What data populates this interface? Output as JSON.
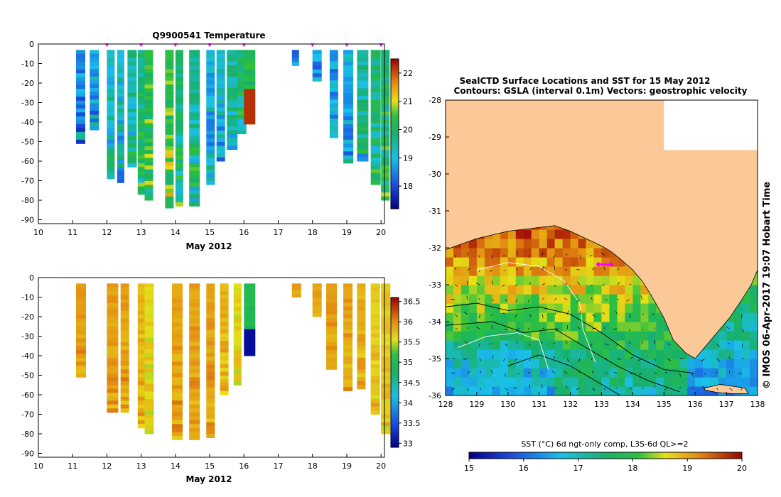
{
  "charts": {
    "temperature": {
      "title": "Q9900541  Temperature",
      "xlabel": "May 2012",
      "x_ticks": [
        "10",
        "11",
        "12",
        "13",
        "14",
        "15",
        "16",
        "17",
        "18",
        "19",
        "20"
      ],
      "y_ticks": [
        "0",
        "-10",
        "-20",
        "-30",
        "-40",
        "-50",
        "-60",
        "-70",
        "-80",
        "-90"
      ],
      "colorbar_ticks": [
        "22",
        "21",
        "20",
        "19",
        "18"
      ],
      "colors": {
        "cold": "#1d4fd8",
        "cool": "#1bbfe6",
        "mid": "#20c0b8",
        "green": "#1aab55",
        "yellow": "#e6e01a",
        "orange": "#e08a10",
        "red": "#b01010"
      }
    },
    "salinity": {
      "xlabel": "May 2012",
      "x_ticks": [
        "10",
        "11",
        "12",
        "13",
        "14",
        "15",
        "16",
        "17",
        "18",
        "19",
        "20"
      ],
      "y_ticks": [
        "0",
        "-10",
        "-20",
        "-30",
        "-40",
        "-50",
        "-60",
        "-70",
        "-80",
        "-90"
      ],
      "colorbar_ticks": [
        "36.5",
        "36",
        "35.5",
        "35",
        "34.5",
        "34",
        "33.5",
        "33"
      ],
      "colors": {
        "base": "#de7a0f",
        "dark": "#c8500c",
        "light": "#e69a20"
      }
    },
    "map": {
      "title_line1": "SealCTD Surface Locations and SST for 15 May 2012",
      "title_line2": "Contours: GSLA (interval 0.1m) Vectors: geostrophic velocity",
      "x_ticks": [
        "128",
        "129",
        "130",
        "131",
        "132",
        "133",
        "134",
        "135",
        "136",
        "137",
        "138"
      ],
      "y_ticks": [
        "-28",
        "-29",
        "-30",
        "-31",
        "-32",
        "-33",
        "-34",
        "-35",
        "-36"
      ],
      "side_stamp": "© IMOS 06-Apr-2017 19:07 Hobart Time",
      "colorbar_label": "SST (°C) 6d ngt-only comp, L3S-6d QL>=2",
      "colorbar_ticks": [
        "15",
        "16",
        "17",
        "18",
        "19",
        "20"
      ],
      "land_color": "#fbc898"
    }
  },
  "chart_data": [
    {
      "type": "heatmap",
      "title": "Q9900541  Temperature",
      "xlabel": "May 2012",
      "ylabel": "",
      "xlim": [
        10,
        20.1
      ],
      "ylim": [
        -92,
        0
      ],
      "colorbar_range": [
        17.2,
        22.5
      ],
      "profiles": [
        {
          "day": 11.1,
          "depth": -51,
          "value": 18.6
        },
        {
          "day": 11.5,
          "depth": -44,
          "value": 18.8
        },
        {
          "day": 12.0,
          "depth": -69,
          "value": 19.2
        },
        {
          "day": 12.3,
          "depth": -71,
          "value": 19.2
        },
        {
          "day": 12.6,
          "depth": -63,
          "value": 19.6
        },
        {
          "day": 12.9,
          "depth": -77,
          "value": 19.8
        },
        {
          "day": 13.1,
          "depth": -80,
          "value": 20.3
        },
        {
          "day": 13.7,
          "depth": -84,
          "value": 20.5
        },
        {
          "day": 14.0,
          "depth": -83,
          "value": 19.8
        },
        {
          "day": 14.4,
          "depth": -83,
          "value": 19.7
        },
        {
          "day": 14.9,
          "depth": -72,
          "value": 19.0
        },
        {
          "day": 15.2,
          "depth": -60,
          "value": 19.2
        },
        {
          "day": 15.5,
          "depth": -54,
          "value": 19.5
        },
        {
          "day": 15.8,
          "depth": -46,
          "value": 19.9
        },
        {
          "day": 16.0,
          "depth": -41,
          "value": 20.4
        },
        {
          "day": 17.4,
          "depth": -11,
          "value": 18.4
        },
        {
          "day": 18.0,
          "depth": -19,
          "value": 18.6
        },
        {
          "day": 18.5,
          "depth": -48,
          "value": 18.7
        },
        {
          "day": 18.9,
          "depth": -61,
          "value": 19.0
        },
        {
          "day": 19.3,
          "depth": -60,
          "value": 19.5
        },
        {
          "day": 19.7,
          "depth": -72,
          "value": 19.8
        },
        {
          "day": 20.0,
          "depth": -80,
          "value": 20.0
        }
      ]
    },
    {
      "type": "heatmap",
      "title": "",
      "xlabel": "May 2012",
      "ylabel": "",
      "xlim": [
        10,
        20.1
      ],
      "ylim": [
        -92,
        0
      ],
      "colorbar_range": [
        32.9,
        36.6
      ],
      "profiles": [
        {
          "day": 11.1,
          "depth": -51,
          "value": 35.9
        },
        {
          "day": 12.0,
          "depth": -69,
          "value": 35.9
        },
        {
          "day": 12.4,
          "depth": -69,
          "value": 35.9
        },
        {
          "day": 12.9,
          "depth": -77,
          "value": 35.8
        },
        {
          "day": 13.1,
          "depth": -80,
          "value": 35.6
        },
        {
          "day": 13.9,
          "depth": -83,
          "value": 35.9
        },
        {
          "day": 14.4,
          "depth": -83,
          "value": 35.9
        },
        {
          "day": 14.9,
          "depth": -82,
          "value": 35.9
        },
        {
          "day": 15.3,
          "depth": -60,
          "value": 35.8
        },
        {
          "day": 15.7,
          "depth": -55,
          "value": 35.6
        },
        {
          "day": 16.0,
          "depth": -40,
          "value": 35.0
        },
        {
          "day": 17.4,
          "depth": -10,
          "value": 35.9
        },
        {
          "day": 18.0,
          "depth": -20,
          "value": 35.9
        },
        {
          "day": 18.4,
          "depth": -47,
          "value": 35.9
        },
        {
          "day": 18.9,
          "depth": -58,
          "value": 35.9
        },
        {
          "day": 19.3,
          "depth": -57,
          "value": 35.8
        },
        {
          "day": 19.7,
          "depth": -70,
          "value": 35.7
        },
        {
          "day": 20.0,
          "depth": -80,
          "value": 35.7
        }
      ]
    },
    {
      "type": "heatmap",
      "title": "SealCTD Surface Locations and SST for 15 May 2012",
      "xlabel": "",
      "ylabel": "",
      "xlim": [
        128,
        138
      ],
      "ylim": [
        -36,
        -28
      ],
      "colorbar_range": [
        15,
        20
      ],
      "coast": [
        [
          128,
          -32.05
        ],
        [
          129,
          -31.75
        ],
        [
          130,
          -31.55
        ],
        [
          131,
          -31.45
        ],
        [
          131.5,
          -31.4
        ],
        [
          132,
          -31.55
        ],
        [
          132.5,
          -31.75
        ],
        [
          133,
          -31.95
        ],
        [
          133.3,
          -32.1
        ],
        [
          133.6,
          -32.3
        ],
        [
          134,
          -32.6
        ],
        [
          134.3,
          -32.9
        ],
        [
          134.6,
          -33.3
        ],
        [
          135,
          -33.9
        ],
        [
          135.3,
          -34.5
        ],
        [
          135.7,
          -34.85
        ],
        [
          136,
          -35.0
        ],
        [
          136.3,
          -34.7
        ],
        [
          136.7,
          -34.3
        ],
        [
          137.1,
          -33.9
        ],
        [
          137.5,
          -33.4
        ],
        [
          137.8,
          -33.0
        ],
        [
          138,
          -32.6
        ]
      ],
      "island": [
        [
          136.3,
          -35.8
        ],
        [
          136.8,
          -35.7
        ],
        [
          137.2,
          -35.75
        ],
        [
          137.6,
          -35.8
        ],
        [
          137.7,
          -35.95
        ],
        [
          137.2,
          -35.95
        ],
        [
          136.7,
          -35.92
        ],
        [
          136.3,
          -35.85
        ]
      ],
      "missing_region": [
        [
          135,
          -29.35
        ],
        [
          138,
          -29.35
        ],
        [
          138,
          -28
        ],
        [
          135,
          -28
        ]
      ],
      "seal_track": [
        {
          "lon": 132.9,
          "lat": -32.45
        },
        {
          "lon": 133.3,
          "lat": -32.45
        }
      ],
      "gsla_contours": [
        [
          [
            128,
            -33.6
          ],
          [
            129,
            -33.5
          ],
          [
            130,
            -33.7
          ],
          [
            131,
            -33.6
          ],
          [
            132,
            -33.8
          ],
          [
            133,
            -34.3
          ],
          [
            134,
            -34.9
          ],
          [
            135,
            -35.3
          ],
          [
            136,
            -35.4
          ]
        ],
        [
          [
            128,
            -34.1
          ],
          [
            129.5,
            -34.0
          ],
          [
            130.5,
            -34.3
          ],
          [
            131.5,
            -34.2
          ],
          [
            132.5,
            -34.7
          ],
          [
            133.5,
            -35.2
          ],
          [
            134.5,
            -35.6
          ],
          [
            135.5,
            -35.9
          ]
        ],
        [
          [
            130,
            -35.2
          ],
          [
            131,
            -34.9
          ],
          [
            132,
            -35.2
          ],
          [
            133,
            -35.7
          ],
          [
            133.6,
            -36
          ]
        ]
      ],
      "sst_contours": [
        [
          [
            129,
            -32.6
          ],
          [
            130,
            -32.4
          ],
          [
            131,
            -32.5
          ],
          [
            131.8,
            -32.9
          ],
          [
            132.3,
            -33.5
          ],
          [
            132.4,
            -34.2
          ],
          [
            132.8,
            -35.1
          ]
        ],
        [
          [
            128.4,
            -34.7
          ],
          [
            129.3,
            -34.4
          ],
          [
            130.3,
            -34.3
          ],
          [
            131,
            -34.5
          ],
          [
            131.3,
            -35.3
          ]
        ]
      ]
    }
  ]
}
